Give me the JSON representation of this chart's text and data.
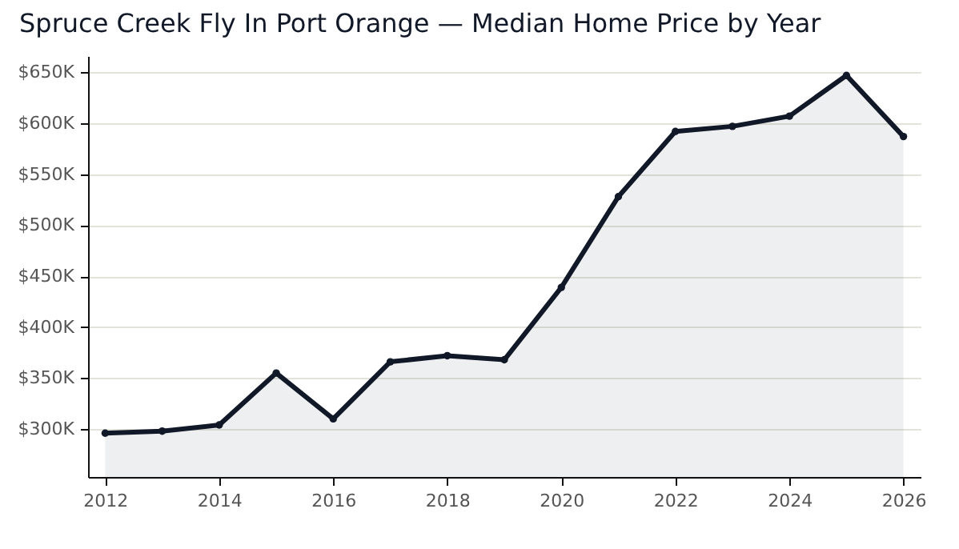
{
  "chart_data": {
    "type": "area",
    "title": "Spruce Creek Fly In Port Orange — Median Home Price by Year",
    "x": [
      2012,
      2013,
      2014,
      2015,
      2016,
      2017,
      2018,
      2019,
      2020,
      2021,
      2022,
      2023,
      2024,
      2025,
      2026
    ],
    "series": [
      {
        "color": "#111827",
        "values": [
          296,
          298,
          304,
          355,
          310,
          366,
          372,
          368,
          439,
          528,
          592,
          597,
          607,
          647,
          587
        ]
      }
    ],
    "xlim": [
      2011.7,
      2026.3
    ],
    "xticks": [
      2012,
      2014,
      2016,
      2018,
      2020,
      2022,
      2024,
      2026
    ],
    "ylim": [
      253,
      666
    ],
    "yticks": [
      {
        "value": 300,
        "label": "$300K"
      },
      {
        "value": 350,
        "label": "$350K"
      },
      {
        "value": 400,
        "label": "$400K"
      },
      {
        "value": 450,
        "label": "$450K"
      },
      {
        "value": 500,
        "label": "$500K"
      },
      {
        "value": 550,
        "label": "$550K"
      },
      {
        "value": 600,
        "label": "$600K"
      },
      {
        "value": 650,
        "label": "$650K"
      }
    ],
    "grid": "y",
    "marker": "circle",
    "line_style": "solid"
  }
}
